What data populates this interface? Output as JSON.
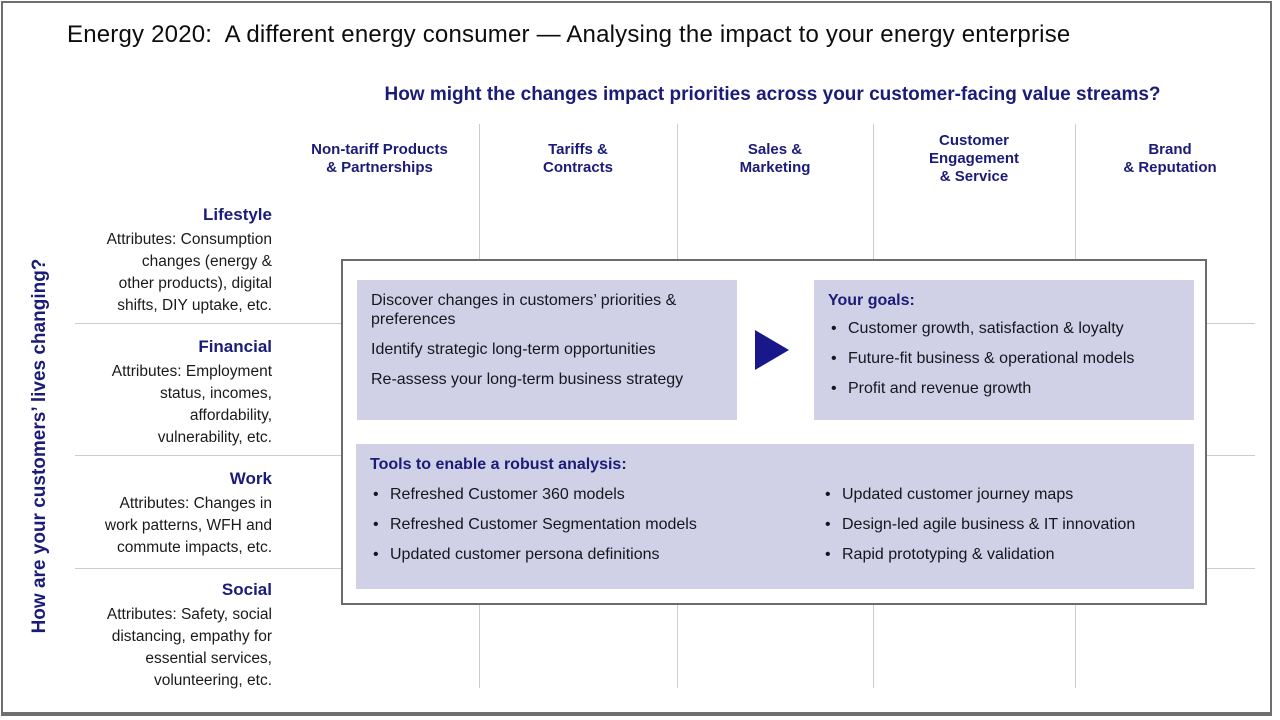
{
  "slide": {
    "title": "Energy 2020:  A different energy consumer — Analysing the impact to your energy enterprise",
    "question": "How might the changes impact priorities across your customer-facing value streams?"
  },
  "value_streams": {
    "columns": [
      {
        "label": "Non-tariff Products\n& Partnerships"
      },
      {
        "label": "Tariffs &\nContracts"
      },
      {
        "label": "Sales &\nMarketing"
      },
      {
        "label": "Customer\nEngagement\n& Service"
      },
      {
        "label": "Brand\n& Reputation"
      }
    ]
  },
  "customer_axis": {
    "label": "How are your customers’ lives changing?",
    "rows": [
      {
        "name": "Lifestyle",
        "attributes": "Attributes: Consumption\nchanges (energy &\nother products), digital\nshifts, DIY uptake, etc."
      },
      {
        "name": "Financial",
        "attributes": "Attributes: Employment\nstatus, incomes,\naffordability,\nvulnerability, etc."
      },
      {
        "name": "Work",
        "attributes": "Attributes: Changes in\nwork patterns, WFH and\ncommute impacts, etc."
      },
      {
        "name": "Social",
        "attributes": "Attributes: Safety, social\ndistancing, empathy for\nessential services,\nvolunteering, etc."
      }
    ]
  },
  "overlay": {
    "actions": [
      "Discover changes in customers’ priorities &\npreferences",
      "Identify strategic long-term opportunities",
      "Re-assess your long-term business strategy"
    ],
    "goals": {
      "heading": "Your goals:",
      "items": [
        "Customer growth, satisfaction & loyalty",
        "Future-fit business & operational models",
        "Profit and revenue growth"
      ]
    },
    "tools": {
      "heading": "Tools to enable a robust analysis:",
      "items_left": [
        "Refreshed Customer 360 models",
        "Refreshed Customer Segmentation models",
        "Updated customer persona definitions"
      ],
      "items_right": [
        "Updated customer journey maps",
        "Design-led agile business & IT innovation",
        "Rapid prototyping & validation"
      ]
    }
  },
  "colors": {
    "navy": "#1B1B78",
    "lavender": "#D0D0E6",
    "grid_line": "#CCCCCC",
    "overlay_border": "#6B6B6B",
    "frame_border": "#6F6F6F"
  }
}
